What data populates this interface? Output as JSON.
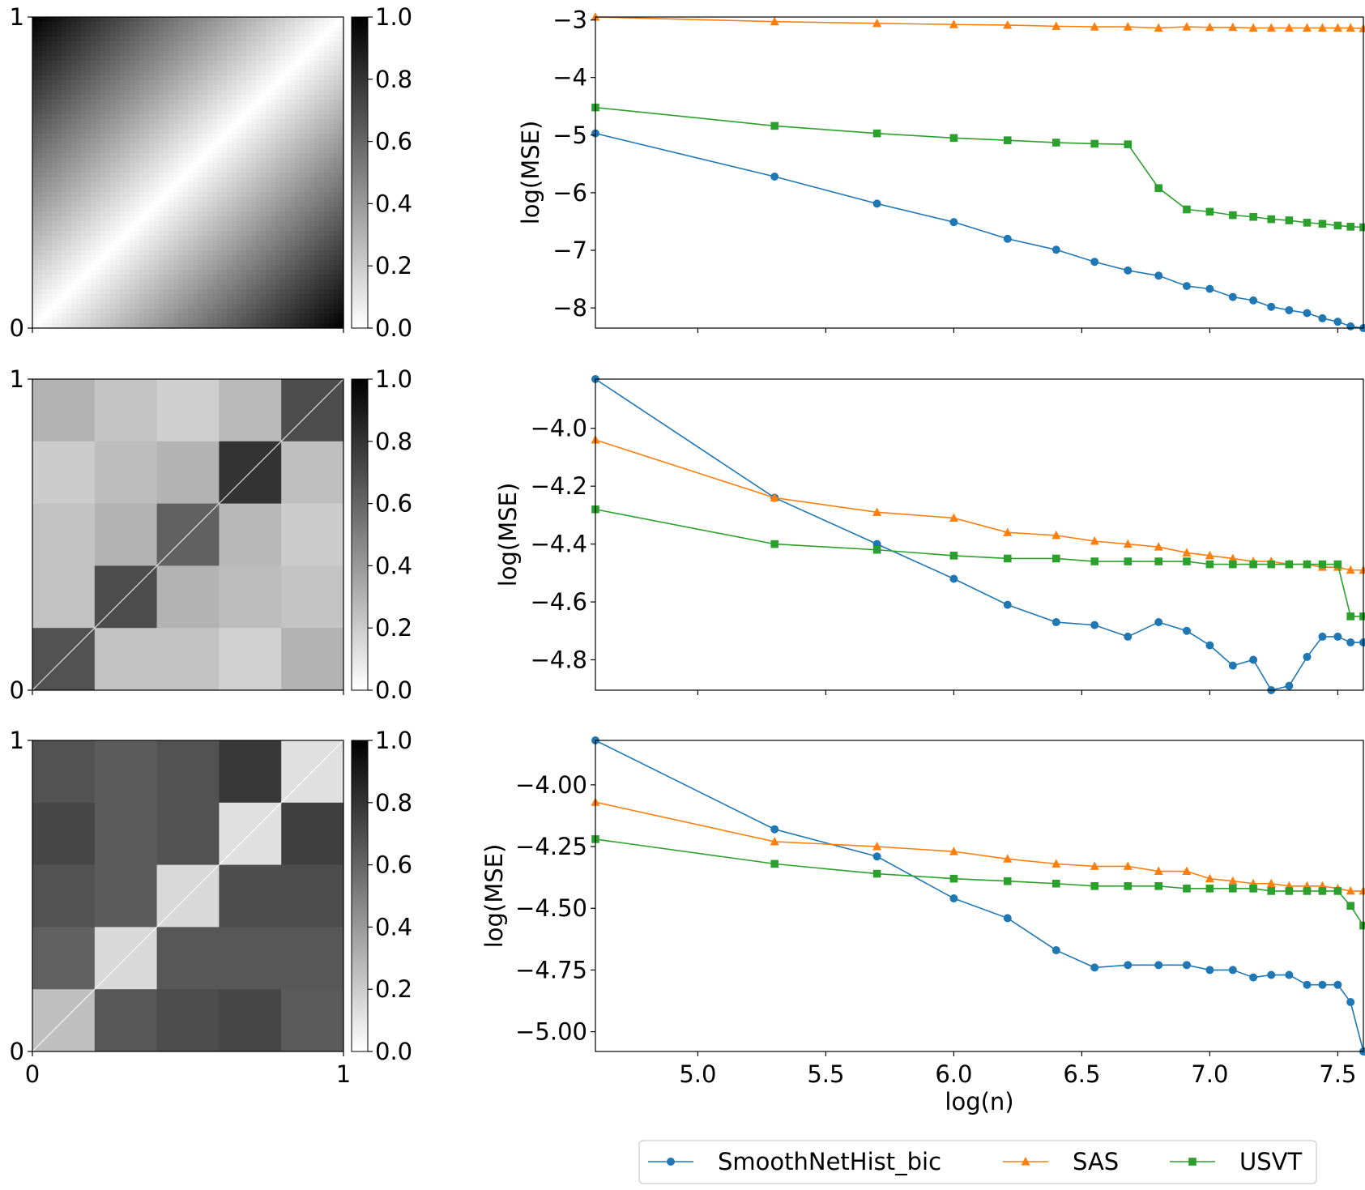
{
  "chart_data": [
    {
      "type": "heatmap",
      "name": "graphon-1",
      "pattern": "abs_diff",
      "cell_values": [],
      "x_ticks": [
        "0",
        "1"
      ],
      "y_ticks": [
        "0",
        "1"
      ],
      "colorbar": {
        "range": [
          0,
          1
        ],
        "ticks": [
          "0.0",
          "0.2",
          "0.4",
          "0.6",
          "0.8",
          "1.0"
        ],
        "colors": [
          "#ffffff",
          "#000000"
        ]
      }
    },
    {
      "type": "heatmap",
      "name": "graphon-2",
      "pattern": "blocks",
      "cell_values": [
        [
          0.3,
          0.23,
          0.19,
          0.27,
          0.7
        ],
        [
          0.2,
          0.26,
          0.3,
          0.8,
          0.25
        ],
        [
          0.24,
          0.3,
          0.62,
          0.28,
          0.2
        ],
        [
          0.24,
          0.7,
          0.3,
          0.26,
          0.23
        ],
        [
          0.68,
          0.24,
          0.24,
          0.18,
          0.3
        ]
      ],
      "x_ticks": [
        "0",
        "1"
      ],
      "y_ticks": [
        "0",
        "1"
      ],
      "colorbar": {
        "range": [
          0,
          1
        ],
        "ticks": [
          "0.0",
          "0.2",
          "0.4",
          "0.6",
          "0.8",
          "1.0"
        ],
        "colors": [
          "#ffffff",
          "#000000"
        ]
      }
    },
    {
      "type": "heatmap",
      "name": "graphon-3",
      "pattern": "blocks",
      "cell_values": [
        [
          0.68,
          0.64,
          0.68,
          0.78,
          0.12
        ],
        [
          0.72,
          0.64,
          0.68,
          0.12,
          0.75
        ],
        [
          0.68,
          0.64,
          0.15,
          0.7,
          0.7
        ],
        [
          0.62,
          0.15,
          0.66,
          0.66,
          0.66
        ],
        [
          0.25,
          0.66,
          0.7,
          0.72,
          0.64
        ]
      ],
      "x_ticks": [
        "0",
        "1"
      ],
      "y_ticks": [
        "0",
        "1"
      ],
      "colorbar": {
        "range": [
          0,
          1
        ],
        "ticks": [
          "0.0",
          "0.2",
          "0.4",
          "0.6",
          "0.8",
          "1.0"
        ],
        "colors": [
          "#ffffff",
          "#000000"
        ]
      }
    },
    {
      "type": "line",
      "name": "mse-1",
      "xlim": [
        4.6,
        7.6
      ],
      "ylim": [
        -8.35,
        -2.95
      ],
      "ylabel": "log(MSE)",
      "xlabel": "",
      "yticks": [
        -8,
        -7,
        -6,
        -5,
        -4,
        -3
      ],
      "ytick_labels": [
        "−8",
        "−7",
        "−6",
        "−5",
        "−4",
        "−3"
      ],
      "xticks": [
        5.0,
        5.5,
        6.0,
        6.5,
        7.0,
        7.5
      ],
      "xtick_labels": [],
      "x": [
        4.6,
        5.3,
        5.7,
        6.0,
        6.21,
        6.4,
        6.55,
        6.68,
        6.8,
        6.91,
        7.0,
        7.09,
        7.17,
        7.24,
        7.31,
        7.38,
        7.44,
        7.5,
        7.55,
        7.6
      ],
      "series": [
        {
          "name": "SmoothNetHist_bic",
          "values": [
            -4.97,
            -5.72,
            -6.19,
            -6.51,
            -6.8,
            -6.99,
            -7.2,
            -7.35,
            -7.44,
            -7.62,
            -7.67,
            -7.81,
            -7.87,
            -7.98,
            -8.04,
            -8.09,
            -8.18,
            -8.24,
            -8.32,
            -8.35
          ]
        },
        {
          "name": "SAS",
          "values": [
            -2.95,
            -3.03,
            -3.06,
            -3.08,
            -3.09,
            -3.11,
            -3.12,
            -3.12,
            -3.14,
            -3.12,
            -3.13,
            -3.13,
            -3.14,
            -3.14,
            -3.14,
            -3.14,
            -3.14,
            -3.14,
            -3.14,
            -3.15
          ]
        },
        {
          "name": "USVT",
          "values": [
            -4.52,
            -4.84,
            -4.97,
            -5.05,
            -5.09,
            -5.13,
            -5.15,
            -5.16,
            -5.92,
            -6.29,
            -6.33,
            -6.39,
            -6.42,
            -6.46,
            -6.48,
            -6.52,
            -6.54,
            -6.57,
            -6.59,
            -6.6
          ]
        }
      ]
    },
    {
      "type": "line",
      "name": "mse-2",
      "xlim": [
        4.6,
        7.6
      ],
      "ylim": [
        -4.905,
        -3.83
      ],
      "ylabel": "log(MSE)",
      "xlabel": "",
      "yticks": [
        -4.8,
        -4.6,
        -4.4,
        -4.2,
        -4.0
      ],
      "ytick_labels": [
        "−4.8",
        "−4.6",
        "−4.4",
        "−4.2",
        "−4.0"
      ],
      "xticks": [
        5.0,
        5.5,
        6.0,
        6.5,
        7.0,
        7.5
      ],
      "xtick_labels": [],
      "x": [
        4.6,
        5.3,
        5.7,
        6.0,
        6.21,
        6.4,
        6.55,
        6.68,
        6.8,
        6.91,
        7.0,
        7.09,
        7.17,
        7.24,
        7.31,
        7.38,
        7.44,
        7.5,
        7.55,
        7.6
      ],
      "series": [
        {
          "name": "SmoothNetHist_bic",
          "values": [
            -3.83,
            -4.24,
            -4.4,
            -4.52,
            -4.61,
            -4.67,
            -4.68,
            -4.72,
            -4.67,
            -4.7,
            -4.75,
            -4.82,
            -4.8,
            -4.905,
            -4.89,
            -4.79,
            -4.72,
            -4.72,
            -4.74,
            -4.74
          ]
        },
        {
          "name": "SAS",
          "values": [
            -4.04,
            -4.24,
            -4.29,
            -4.31,
            -4.36,
            -4.37,
            -4.39,
            -4.4,
            -4.41,
            -4.43,
            -4.44,
            -4.45,
            -4.46,
            -4.46,
            -4.47,
            -4.47,
            -4.48,
            -4.48,
            -4.49,
            -4.49
          ]
        },
        {
          "name": "USVT",
          "values": [
            -4.28,
            -4.4,
            -4.42,
            -4.44,
            -4.45,
            -4.45,
            -4.46,
            -4.46,
            -4.46,
            -4.46,
            -4.47,
            -4.47,
            -4.47,
            -4.47,
            -4.47,
            -4.47,
            -4.47,
            -4.47,
            -4.65,
            -4.65
          ]
        }
      ]
    },
    {
      "type": "line",
      "name": "mse-3",
      "xlim": [
        4.6,
        7.6
      ],
      "ylim": [
        -5.08,
        -3.82
      ],
      "ylabel": "log(MSE)",
      "xlabel": "log(n)",
      "yticks": [
        -5.0,
        -4.75,
        -4.5,
        -4.25,
        -4.0
      ],
      "ytick_labels": [
        "−5.00",
        "−4.75",
        "−4.50",
        "−4.25",
        "−4.00"
      ],
      "xticks": [
        5.0,
        5.5,
        6.0,
        6.5,
        7.0,
        7.5
      ],
      "xtick_labels": [
        "5.0",
        "5.5",
        "6.0",
        "6.5",
        "7.0",
        "7.5"
      ],
      "x": [
        4.6,
        5.3,
        5.7,
        6.0,
        6.21,
        6.4,
        6.55,
        6.68,
        6.8,
        6.91,
        7.0,
        7.09,
        7.17,
        7.24,
        7.31,
        7.38,
        7.44,
        7.5,
        7.55,
        7.6
      ],
      "series": [
        {
          "name": "SmoothNetHist_bic",
          "values": [
            -3.82,
            -4.18,
            -4.29,
            -4.46,
            -4.54,
            -4.67,
            -4.74,
            -4.73,
            -4.73,
            -4.73,
            -4.75,
            -4.75,
            -4.78,
            -4.77,
            -4.77,
            -4.81,
            -4.81,
            -4.81,
            -4.88,
            -5.08
          ]
        },
        {
          "name": "SAS",
          "values": [
            -4.07,
            -4.23,
            -4.25,
            -4.27,
            -4.3,
            -4.32,
            -4.33,
            -4.33,
            -4.35,
            -4.35,
            -4.38,
            -4.39,
            -4.4,
            -4.4,
            -4.41,
            -4.41,
            -4.41,
            -4.42,
            -4.43,
            -4.43
          ]
        },
        {
          "name": "USVT",
          "values": [
            -4.22,
            -4.32,
            -4.36,
            -4.38,
            -4.39,
            -4.4,
            -4.41,
            -4.41,
            -4.41,
            -4.42,
            -4.42,
            -4.42,
            -4.42,
            -4.43,
            -4.43,
            -4.43,
            -4.43,
            -4.43,
            -4.49,
            -4.57
          ]
        }
      ]
    }
  ],
  "legend": {
    "placement": "bottom-center",
    "entries": [
      {
        "name": "SmoothNetHist_bic",
        "color": "#1f77b4",
        "marker": "circle"
      },
      {
        "name": "SAS",
        "color": "#ff7f0e",
        "marker": "triangle"
      },
      {
        "name": "USVT",
        "color": "#2ca02c",
        "marker": "square"
      }
    ]
  },
  "colors": {
    "blue": "#1f77b4",
    "orange": "#ff7f0e",
    "green": "#2ca02c"
  }
}
